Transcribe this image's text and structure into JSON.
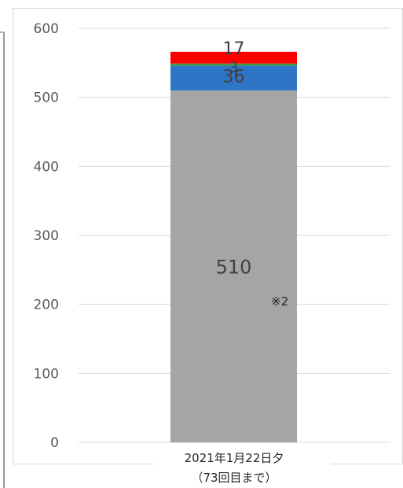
{
  "chart_data": {
    "type": "bar",
    "stacked": true,
    "categories": [
      "2021年1月22日夕"
    ],
    "category_sublabels": [
      "（73回目まで）"
    ],
    "series": [
      {
        "values": [
          510
        ],
        "color": "#a5a5a5",
        "label": "510",
        "label_size": 24
      },
      {
        "values": [
          36
        ],
        "color": "#2e75c5",
        "label": "36",
        "label_size": 22
      },
      {
        "values": [
          3
        ],
        "color": "#3f9a3f",
        "label": "3",
        "label_size": 18
      },
      {
        "values": [
          17
        ],
        "color": "#ff0000",
        "label": "17",
        "label_size": 22
      }
    ],
    "annotation": "※2",
    "ylim": [
      0,
      600
    ],
    "yticks": [
      0,
      100,
      200,
      300,
      400,
      500,
      600
    ],
    "grid": true,
    "legend": "none"
  }
}
